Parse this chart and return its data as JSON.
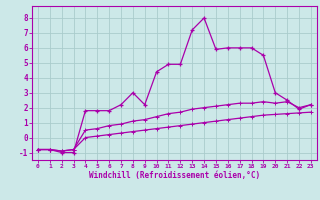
{
  "xlabel": "Windchill (Refroidissement éolien,°C)",
  "bg_color": "#cce8e8",
  "grid_color": "#aacccc",
  "line_color": "#aa00aa",
  "x_values": [
    0,
    1,
    2,
    3,
    4,
    5,
    6,
    7,
    8,
    9,
    10,
    11,
    12,
    13,
    14,
    15,
    16,
    17,
    18,
    19,
    20,
    21,
    22,
    23
  ],
  "ylim": [
    -1.5,
    8.8
  ],
  "xlim": [
    -0.5,
    23.5
  ],
  "series1": [
    -0.8,
    -0.8,
    -1.0,
    -1.0,
    1.8,
    1.8,
    1.8,
    2.2,
    3.0,
    2.2,
    4.4,
    4.9,
    4.9,
    7.2,
    8.0,
    5.9,
    6.0,
    6.0,
    6.0,
    5.5,
    3.0,
    2.5,
    1.9,
    2.2
  ],
  "series2": [
    -0.8,
    -0.8,
    -0.9,
    -0.8,
    0.5,
    0.6,
    0.8,
    0.9,
    1.1,
    1.2,
    1.4,
    1.6,
    1.7,
    1.9,
    2.0,
    2.1,
    2.2,
    2.3,
    2.3,
    2.4,
    2.3,
    2.4,
    2.0,
    2.2
  ],
  "series3": [
    -0.8,
    -0.8,
    -0.9,
    -0.8,
    0.0,
    0.1,
    0.2,
    0.3,
    0.4,
    0.5,
    0.6,
    0.7,
    0.8,
    0.9,
    1.0,
    1.1,
    1.2,
    1.3,
    1.4,
    1.5,
    1.55,
    1.6,
    1.65,
    1.7
  ]
}
